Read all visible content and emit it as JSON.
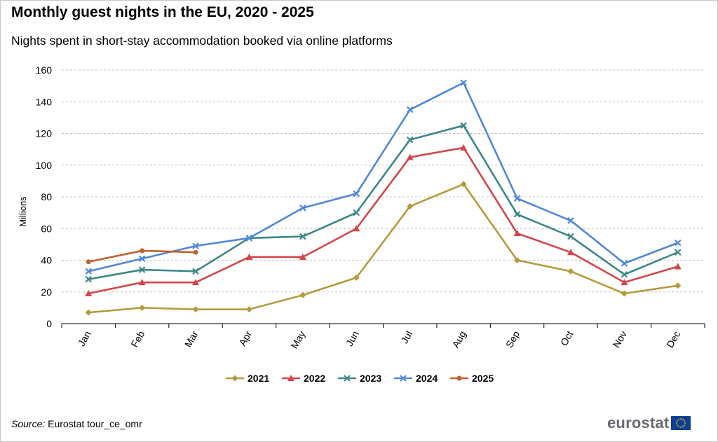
{
  "header": {
    "title": "Monthly guest nights in the EU, 2020 - 2025",
    "subtitle": "Nights spent in short-stay accommodation booked via online platforms"
  },
  "footer": {
    "source_label": "Source:",
    "source_text": "Eurostat tour_ce_omr",
    "brand": "eurostat",
    "flag_icon": "eu-flag-icon"
  },
  "chart_data": {
    "type": "line",
    "title": "Monthly guest nights in the EU, 2020 - 2025",
    "subtitle": "Nights spent in short-stay accommodation booked via online platforms",
    "xlabel": "",
    "ylabel": "Millions",
    "ylim": [
      0,
      160
    ],
    "yticks": [
      0,
      20,
      40,
      60,
      80,
      100,
      120,
      140,
      160
    ],
    "grid": "horizontal dashed",
    "legend_position": "bottom",
    "categories": [
      "Jan",
      "Feb",
      "Mar",
      "Apr",
      "May",
      "Jun",
      "Jul",
      "Aug",
      "Sep",
      "Oct",
      "Nov",
      "Dec"
    ],
    "series": [
      {
        "name": "2021",
        "color": "#b59a3c",
        "marker": "diamond",
        "values": [
          7,
          10,
          9,
          9,
          18,
          29,
          74,
          88,
          40,
          33,
          19,
          24
        ]
      },
      {
        "name": "2022",
        "color": "#d2464b",
        "marker": "triangle",
        "values": [
          19,
          26,
          26,
          42,
          42,
          60,
          105,
          111,
          57,
          45,
          26,
          36
        ]
      },
      {
        "name": "2023",
        "color": "#3c8786",
        "marker": "x",
        "values": [
          28,
          34,
          33,
          54,
          55,
          70,
          116,
          125,
          69,
          55,
          31,
          45
        ]
      },
      {
        "name": "2024",
        "color": "#5087d7",
        "marker": "x",
        "values": [
          33,
          41,
          49,
          54,
          73,
          82,
          135,
          152,
          79,
          65,
          38,
          51
        ]
      },
      {
        "name": "2025",
        "color": "#c0622d",
        "marker": "circle",
        "values": [
          39,
          46,
          45,
          null,
          null,
          null,
          null,
          null,
          null,
          null,
          null,
          null
        ]
      }
    ]
  }
}
